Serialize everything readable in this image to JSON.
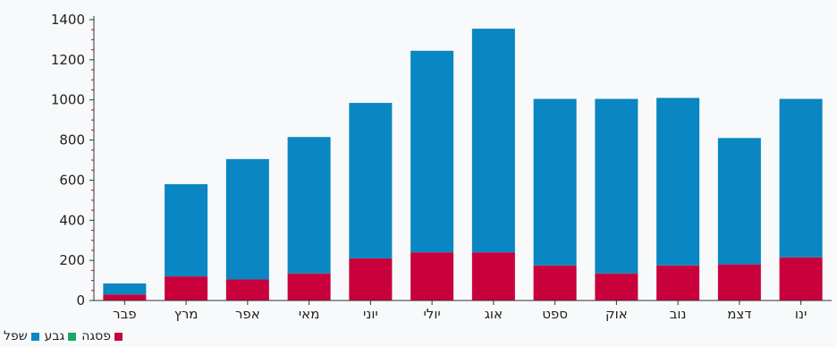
{
  "chart_data": {
    "type": "bar",
    "stacked": true,
    "title": "",
    "xlabel": "",
    "ylabel": "",
    "ylim": [
      0,
      1400
    ],
    "yticks": [
      0,
      200,
      400,
      600,
      800,
      1000,
      1200,
      1400
    ],
    "categories": [
      "פבר",
      "מרץ",
      "אפר",
      "מאי",
      "יוני",
      "יולי",
      "אוג",
      "ספט",
      "אוק",
      "נוב",
      "דצמ",
      "ינו"
    ],
    "series": [
      {
        "name": "פסגה",
        "color": "#c8003c",
        "values": [
          30,
          120,
          105,
          135,
          210,
          240,
          240,
          175,
          135,
          175,
          180,
          215
        ]
      },
      {
        "name": "גבע",
        "color": "#1aa866",
        "values": [
          0,
          0,
          0,
          0,
          0,
          0,
          0,
          0,
          0,
          0,
          0,
          0
        ]
      },
      {
        "name": "שפל",
        "color": "#0a86c2",
        "values": [
          55,
          460,
          600,
          680,
          775,
          1005,
          1115,
          830,
          870,
          835,
          630,
          790
        ]
      }
    ],
    "legend_position": "bottom-left",
    "grid": false
  }
}
